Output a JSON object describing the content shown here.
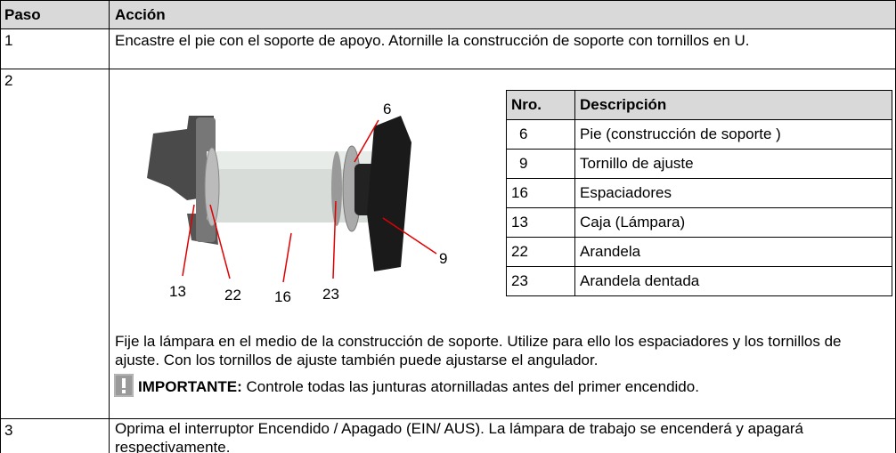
{
  "table": {
    "header": [
      "Paso",
      "Acción"
    ],
    "rows": [
      {
        "step": "1",
        "text": "Encastre el pie con el soporte de apoyo. Atornille la construcción de soporte con tornillos en U."
      },
      {
        "step": "2",
        "figure_labels": [
          "6",
          "9",
          "13",
          "22",
          "16",
          "23"
        ],
        "parts_table": {
          "header": [
            "Nro.",
            "Descripción"
          ],
          "rows": [
            [
              "6",
              "Pie (construcción de soporte )"
            ],
            [
              "9",
              "Tornillo de ajuste"
            ],
            [
              "16",
              "Espaciadores"
            ],
            [
              "13",
              "Caja (Lámpara)"
            ],
            [
              "22",
              "Arandela"
            ],
            [
              "23",
              "Arandela dentada"
            ]
          ]
        },
        "text": "Fije la lámpara en el medio de la construcción de soporte. Utilize para ello los espaciadores y los tornillos de ajuste. Con los tornillos de ajuste también puede ajustarse el angulador.",
        "note_label": "IMPORTANTE:",
        "note_text": "Controle todas las junturas atornilladas antes del primer encendido."
      },
      {
        "step": "3",
        "text": "Oprima el interruptor Encendido / Apagado (EIN/ AUS). La lámpara de trabajo se encenderá y apagará respectivamente."
      }
    ]
  }
}
